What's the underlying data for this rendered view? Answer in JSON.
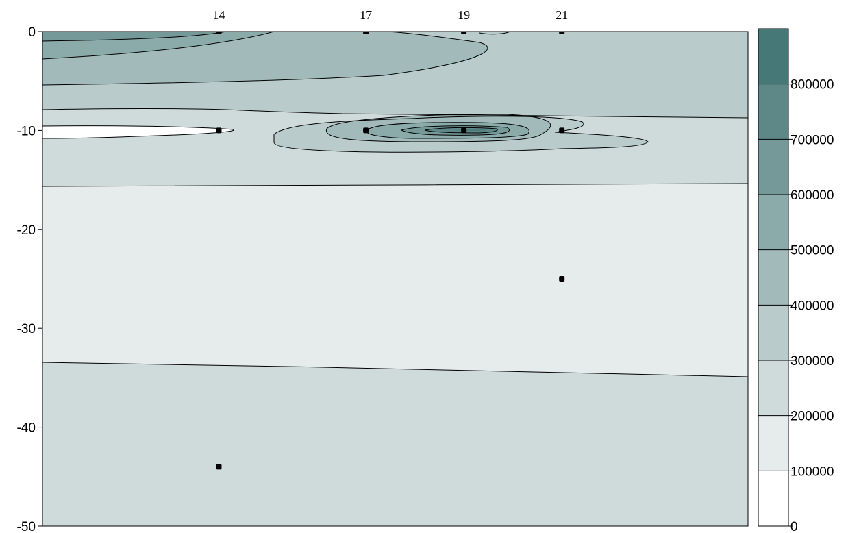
{
  "chart_data": {
    "type": "heatmap",
    "title": "",
    "xlabel": "",
    "ylabel": "",
    "ylim": [
      -50,
      0
    ],
    "y_ticks": [
      "0",
      "-10",
      "-20",
      "-30",
      "-40",
      "-50"
    ],
    "y_tick_values": [
      0,
      -10,
      -20,
      -30,
      -40,
      -50
    ],
    "stations": [
      {
        "label": "14",
        "x": 14
      },
      {
        "label": "17",
        "x": 17
      },
      {
        "label": "19",
        "x": 19
      },
      {
        "label": "21",
        "x": 21
      }
    ],
    "x_range": [
      10.4,
      24.8
    ],
    "sample_points": [
      {
        "x": 14,
        "y": 0
      },
      {
        "x": 17,
        "y": 0
      },
      {
        "x": 19,
        "y": 0
      },
      {
        "x": 21,
        "y": 0
      },
      {
        "x": 14,
        "y": -10
      },
      {
        "x": 17,
        "y": -10
      },
      {
        "x": 19,
        "y": -10
      },
      {
        "x": 21,
        "y": -10
      },
      {
        "x": 21,
        "y": -25
      },
      {
        "x": 14,
        "y": -44
      }
    ],
    "colorbar": {
      "levels": [
        0,
        100000,
        200000,
        300000,
        400000,
        500000,
        600000,
        700000,
        800000,
        900000
      ],
      "labels": [
        "0",
        "100000",
        "200000",
        "300000",
        "400000",
        "500000",
        "600000",
        "700000",
        "800000"
      ],
      "colors": [
        "#ffffff",
        "#e6ecec",
        "#cfdbdb",
        "#b9cbcb",
        "#a2baba",
        "#8baaaa",
        "#759999",
        "#5e8888",
        "#477878"
      ]
    }
  }
}
